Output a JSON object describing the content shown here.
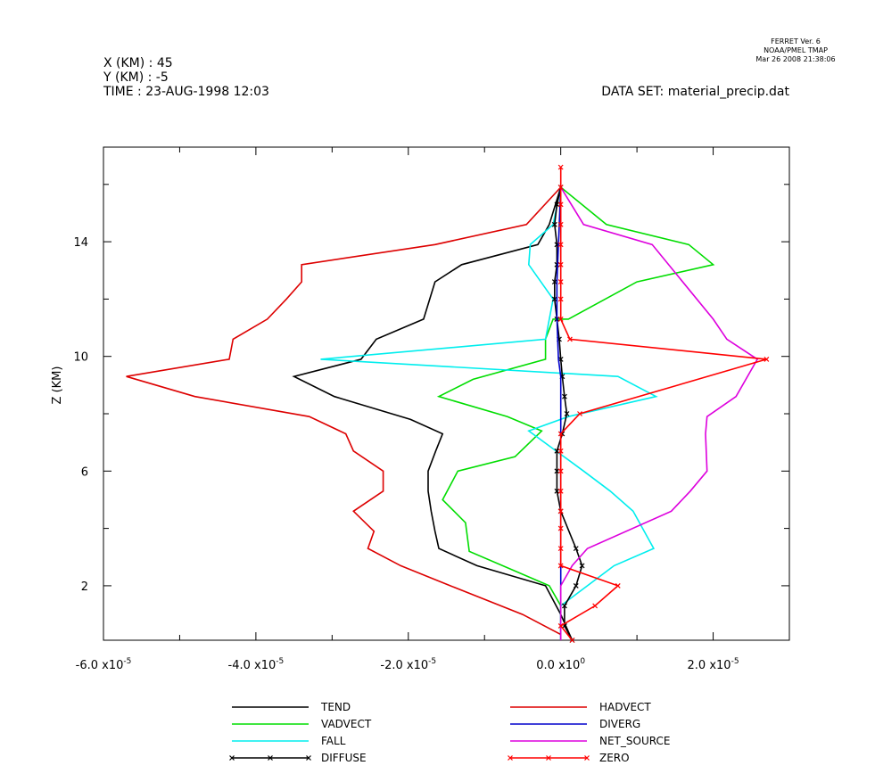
{
  "header": {
    "line1": "X (KM) : 45",
    "line2": "Y (KM) : -5",
    "line3": "TIME : 23-AUG-1998 12:03",
    "dataset": "DATA SET: material_precip.dat",
    "stamp1": "FERRET Ver. 6",
    "stamp2": "NOAA/PMEL TMAP",
    "stamp3": "Mar 26 2008 21:38:06"
  },
  "chart_data": {
    "type": "line",
    "title": "",
    "ylabel": "Z (KM)",
    "xlabel": "",
    "xlim": [
      -6e-05,
      3e-05
    ],
    "ylim": [
      0.1,
      17.3
    ],
    "x_tick_labels": [
      {
        "value": -6e-05,
        "label": "-6.0 x10",
        "exp": "-5"
      },
      {
        "value": -4e-05,
        "label": "-4.0 x10",
        "exp": "-5"
      },
      {
        "value": -2e-05,
        "label": "-2.0 x10",
        "exp": "-5"
      },
      {
        "value": 0,
        "label": "0.0 x10",
        "exp": "0"
      },
      {
        "value": 2e-05,
        "label": "2.0 x10",
        "exp": "-5"
      }
    ],
    "y_tick_labels": [
      {
        "value": 2,
        "label": "2"
      },
      {
        "value": 6,
        "label": "6"
      },
      {
        "value": 10,
        "label": "10"
      },
      {
        "value": 14,
        "label": "14"
      }
    ],
    "series": [
      {
        "name": "TEND",
        "color": "#000000",
        "markers": false,
        "x": [
          1.5e-06,
          0,
          -2e-06,
          -1.1e-05,
          -1.6e-05,
          -1.65e-05,
          -1.7e-05,
          -1.74e-05,
          -1.74e-05,
          -1.64e-05,
          -1.55e-05,
          -1.97e-05,
          -2.97e-05,
          -3.5e-05,
          -2.62e-05,
          -2.42e-05,
          -1.8e-05,
          -1.65e-05,
          -1.3e-05,
          -3e-06,
          -1.5e-06,
          0
        ],
        "y": [
          0.1,
          1.0,
          2.0,
          2.7,
          3.3,
          3.9,
          4.6,
          5.3,
          6.0,
          6.7,
          7.3,
          7.8,
          8.6,
          9.3,
          9.9,
          10.6,
          11.3,
          12.6,
          13.2,
          13.9,
          14.6,
          15.9
        ]
      },
      {
        "name": "VADVECT",
        "color": "#00dd00",
        "markers": false,
        "x": [
          0,
          0,
          -1.5e-06,
          -1.2e-05,
          -1.25e-05,
          -1.55e-05,
          -1.35e-05,
          -6e-06,
          -2.5e-06,
          -7e-06,
          -1.6e-05,
          -1.15e-05,
          -2e-06,
          -2e-06,
          -1e-06,
          1e-06,
          1e-05,
          2e-05,
          1.68e-05,
          6e-06,
          0
        ],
        "y": [
          0.1,
          1.3,
          2.0,
          3.2,
          4.2,
          5.0,
          6.0,
          6.5,
          7.4,
          7.9,
          8.6,
          9.2,
          9.9,
          10.6,
          11.3,
          11.3,
          12.6,
          13.2,
          13.9,
          14.6,
          15.9
        ]
      },
      {
        "name": "FALL",
        "color": "#00eeee",
        "markers": false,
        "x": [
          0,
          0,
          7e-06,
          1.22e-05,
          9.5e-06,
          6.5e-06,
          3e-06,
          -4.2e-06,
          1e-06,
          1.25e-05,
          7.5e-06,
          -3.15e-05,
          -2e-06,
          -1e-06,
          -4.2e-06,
          -4e-06,
          -1e-06,
          0
        ],
        "y": [
          0.1,
          1.3,
          2.7,
          3.3,
          4.6,
          5.3,
          6.0,
          7.4,
          7.9,
          8.6,
          9.3,
          9.9,
          10.6,
          12.0,
          13.2,
          13.9,
          14.6,
          15.9
        ]
      },
      {
        "name": "DIFFUSE",
        "color": "#000000",
        "markers": true,
        "x": [
          1.5e-06,
          5e-07,
          5e-07,
          2e-06,
          2.8e-06,
          2e-06,
          0,
          -5e-07,
          -5e-07,
          -5e-07,
          2e-07,
          8e-07,
          5e-07,
          2e-07,
          0,
          -2e-07,
          -5e-07,
          -8e-07,
          -8e-07,
          -5e-07,
          -5e-07,
          -8e-07,
          -5e-07,
          0
        ],
        "y": [
          0.1,
          0.6,
          1.3,
          2.0,
          2.7,
          3.3,
          4.6,
          5.3,
          6.0,
          6.7,
          7.3,
          8.0,
          8.6,
          9.3,
          9.9,
          10.6,
          11.3,
          12.0,
          12.6,
          13.2,
          13.9,
          14.6,
          15.3,
          15.9
        ]
      },
      {
        "name": "HADVECT",
        "color": "#dd0000",
        "markers": false,
        "x": [
          0,
          -5e-06,
          -1.45e-05,
          -2.1e-05,
          -2.53e-05,
          -2.45e-05,
          -2.72e-05,
          -2.33e-05,
          -2.33e-05,
          -2.72e-05,
          -2.82e-05,
          -3.3e-05,
          -4.8e-05,
          -5.7e-05,
          -4.35e-05,
          -4.3e-05,
          -3.85e-05,
          -3.6e-05,
          -3.4e-05,
          -3.4e-05,
          -1.65e-05,
          -4.5e-06,
          0
        ],
        "y": [
          0.3,
          1.0,
          2.0,
          2.7,
          3.3,
          3.9,
          4.6,
          5.3,
          6.0,
          6.7,
          7.3,
          7.9,
          8.6,
          9.3,
          9.9,
          10.6,
          11.3,
          12.0,
          12.6,
          13.2,
          13.9,
          14.6,
          15.9
        ]
      },
      {
        "name": "DIVERG",
        "color": "#0000cc",
        "markers": false,
        "x": [
          0,
          0,
          0,
          0,
          -3e-07,
          -5e-07,
          -5e-07,
          -3e-07,
          0
        ],
        "y": [
          0.1,
          2.0,
          6.0,
          9.3,
          9.9,
          11.3,
          12.6,
          13.9,
          15.9
        ]
      },
      {
        "name": "NET_SOURCE",
        "color": "#dd00dd",
        "markers": false,
        "x": [
          0,
          0,
          1.5e-06,
          3.5e-06,
          1.45e-05,
          1.7e-05,
          1.92e-05,
          1.9e-05,
          1.92e-05,
          2.3e-05,
          2.58e-05,
          2.18e-05,
          2e-05,
          1.2e-05,
          3e-06,
          0
        ],
        "y": [
          0.1,
          2.0,
          2.7,
          3.3,
          4.6,
          5.3,
          6.0,
          7.3,
          7.9,
          8.6,
          9.9,
          10.6,
          11.3,
          13.9,
          14.6,
          15.9
        ]
      },
      {
        "name": "ZERO",
        "color": "#ff0000",
        "markers": true,
        "x": [
          1.5e-06,
          0,
          4.5e-06,
          7.5e-06,
          0,
          0,
          0,
          0,
          0,
          0,
          0,
          0,
          2.5e-06,
          2.7e-05,
          1.2e-06,
          0,
          0,
          0,
          0,
          0,
          0,
          0,
          0,
          0
        ],
        "y": [
          0.1,
          0.6,
          1.3,
          2.0,
          2.7,
          3.3,
          4.0,
          4.6,
          5.3,
          6.0,
          6.7,
          7.3,
          8.0,
          9.9,
          10.6,
          11.3,
          12.0,
          12.6,
          13.2,
          13.9,
          14.6,
          15.3,
          15.9,
          16.6
        ]
      }
    ],
    "legend_placement": "bottom",
    "grid": false
  }
}
